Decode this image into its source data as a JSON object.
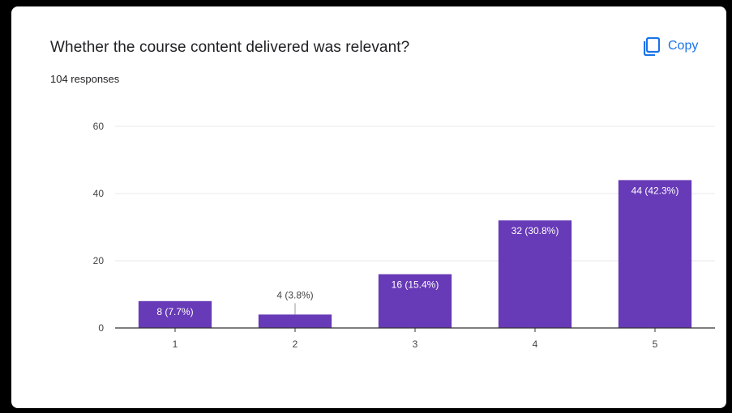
{
  "card": {
    "title": "Whether the course content delivered was relevant?",
    "subtitle": "104 responses",
    "copy_label": "Copy",
    "copy_icon": "copy-icon"
  },
  "colors": {
    "bar": "#673ab7",
    "accent": "#1a73e8",
    "grid": "#e8e8e8",
    "axis": "#333333",
    "text": "#202124",
    "tick_text": "#444444"
  },
  "chart_data": {
    "type": "bar",
    "title": "Whether the course content delivered was relevant?",
    "categories": [
      "1",
      "2",
      "3",
      "4",
      "5"
    ],
    "values": [
      8,
      4,
      16,
      32,
      44
    ],
    "data_labels": [
      "8 (7.7%)",
      "4 (3.8%)",
      "16 (15.4%)",
      "32 (30.8%)",
      "44 (42.3%)"
    ],
    "ylim": [
      0,
      60
    ],
    "yticks": [
      0,
      20,
      40,
      60
    ],
    "xlabel": "",
    "ylabel": "",
    "grid": true,
    "legend": "none"
  }
}
